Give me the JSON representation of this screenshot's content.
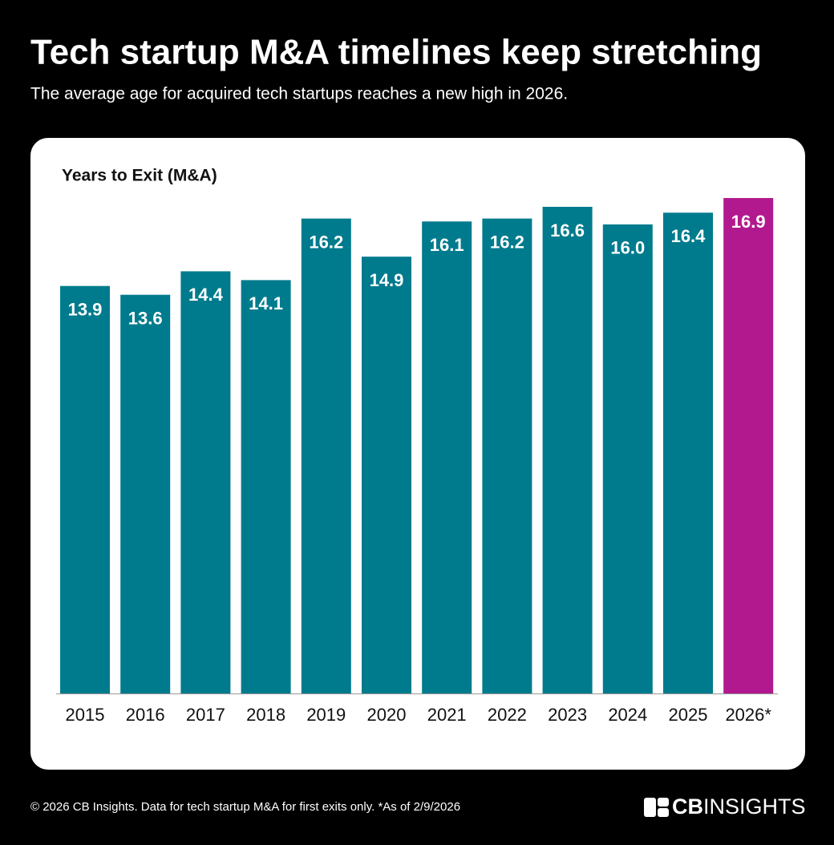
{
  "chart_data": {
    "type": "bar",
    "title": "Tech startup M&A timelines keep stretching",
    "subtitle": "The average age for acquired tech startups reaches a new high in 2026.",
    "y_label": "Years to Exit (M&A)",
    "categories": [
      "2015",
      "2016",
      "2017",
      "2018",
      "2019",
      "2020",
      "2021",
      "2022",
      "2023",
      "2024",
      "2025",
      "2026*"
    ],
    "values": [
      13.9,
      13.6,
      14.4,
      14.1,
      16.2,
      14.9,
      16.1,
      16.2,
      16.6,
      16.0,
      16.4,
      16.9
    ],
    "value_labels": [
      "13.9",
      "13.6",
      "14.4",
      "14.1",
      "16.2",
      "14.9",
      "16.1",
      "16.2",
      "16.6",
      "16.0",
      "16.4",
      "16.9"
    ],
    "colors": [
      "#007b8d",
      "#007b8d",
      "#007b8d",
      "#007b8d",
      "#007b8d",
      "#007b8d",
      "#007b8d",
      "#007b8d",
      "#007b8d",
      "#007b8d",
      "#007b8d",
      "#b2198e"
    ]
  },
  "footer": "© 2026 CB Insights. Data for tech startup M&A for first exits only. *As of 2/9/2026",
  "logo": {
    "bold": "CB",
    "light": "INSIGHTS"
  }
}
